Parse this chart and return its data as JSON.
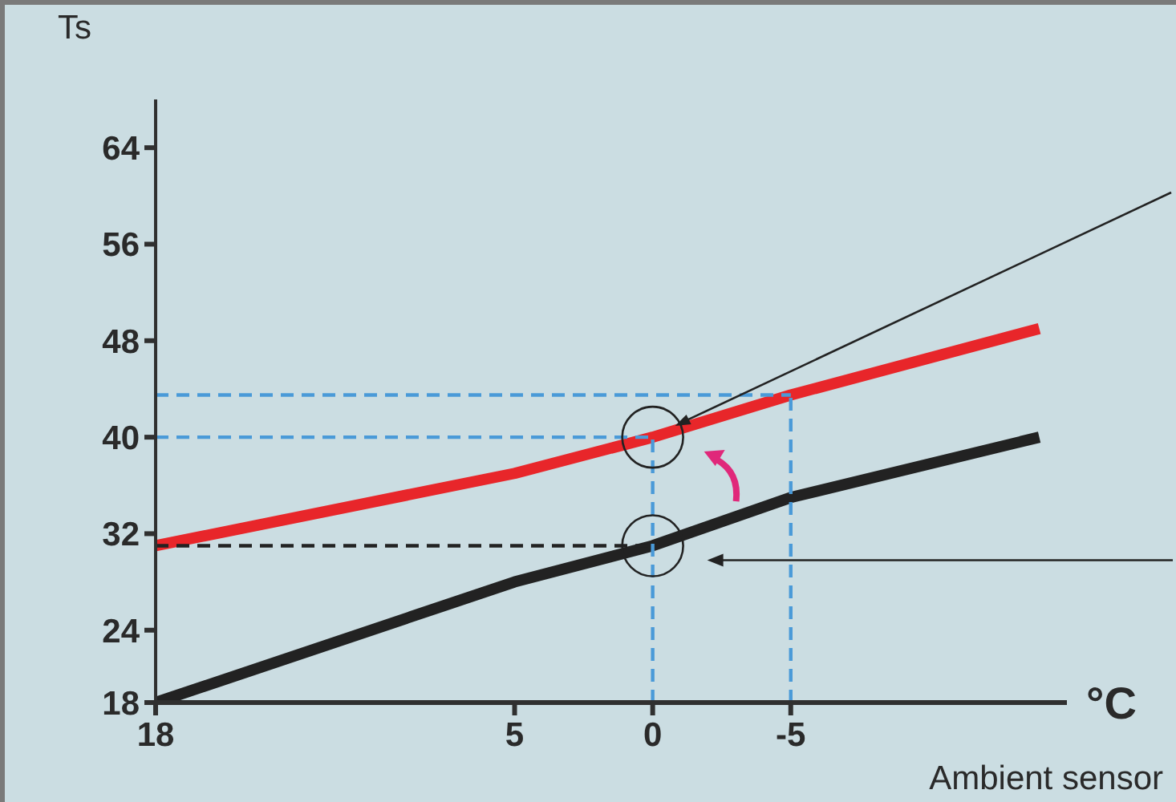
{
  "chart_data": {
    "type": "line",
    "xlabel": "Ambient sensor",
    "ylabel": "Ts",
    "annotations": [
      "°C"
    ],
    "marker": "none",
    "xlim": [
      18,
      -15
    ],
    "xticks": [
      18,
      5,
      0,
      -5
    ],
    "ylim": [
      18,
      68
    ],
    "yticks": [
      18,
      24,
      32,
      40,
      48,
      56,
      64
    ],
    "series": [
      {
        "color": "#222222",
        "x": [
          18,
          5,
          0,
          -5,
          -14
        ],
        "values": [
          18,
          28,
          31,
          35,
          40
        ]
      },
      {
        "color": "#e8262a",
        "x": [
          18,
          5,
          0,
          -5,
          -14
        ],
        "values": [
          31,
          37,
          40,
          43.5,
          49
        ]
      },
      {
        "color": "#4a9ad8",
        "line_style": "dashed",
        "x": [
          18,
          -5
        ],
        "values": [
          43.5,
          43.5
        ]
      },
      {
        "color": "#4a9ad8",
        "line_style": "dashed",
        "x": [
          18,
          0
        ],
        "values": [
          40,
          40
        ]
      },
      {
        "color": "#4a9ad8",
        "line_style": "dashed",
        "x": [
          0,
          0
        ],
        "values": [
          18,
          40
        ]
      },
      {
        "color": "#4a9ad8",
        "line_style": "dashed",
        "x": [
          -5,
          -5
        ],
        "values": [
          18,
          43.5
        ]
      },
      {
        "color": "#222222",
        "line_style": "dashed",
        "x": [
          18,
          0
        ],
        "values": [
          31,
          31
        ]
      }
    ]
  }
}
